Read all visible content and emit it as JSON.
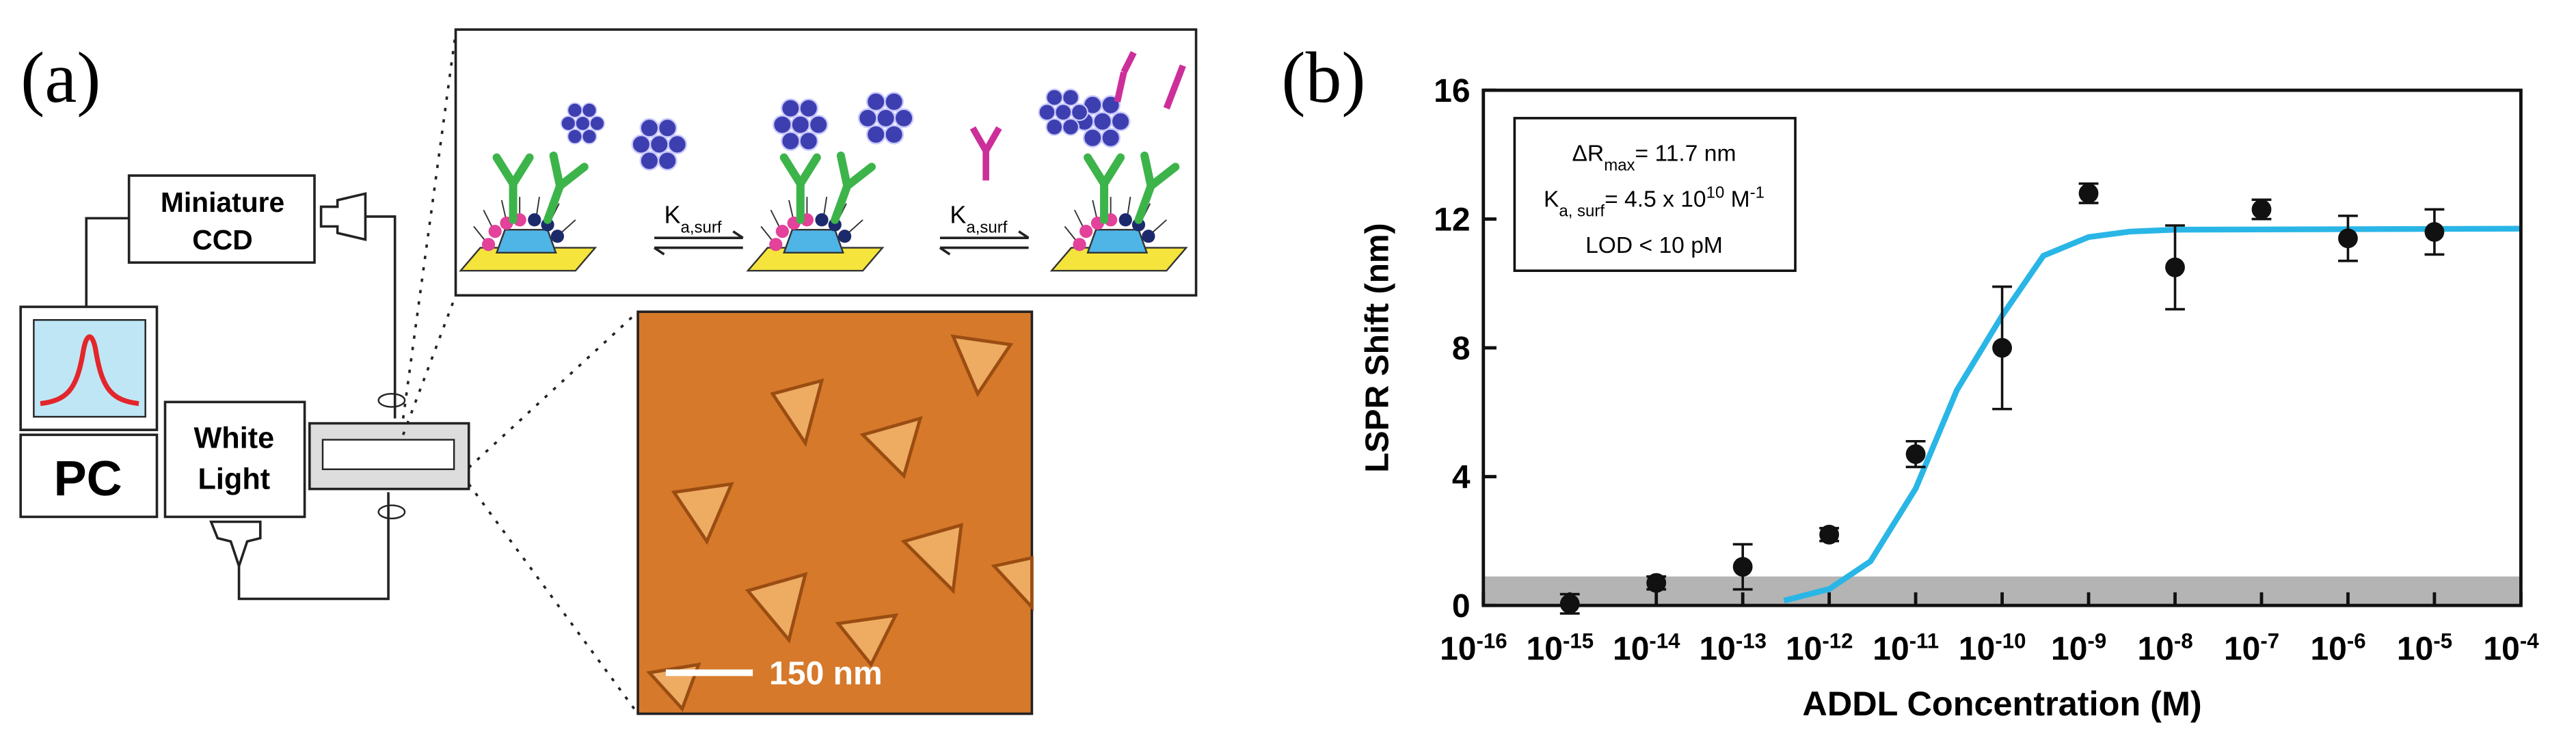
{
  "panel_a": {
    "label": "(a)",
    "ccd": [
      "Miniature",
      "CCD"
    ],
    "pc": "PC",
    "light": [
      "White",
      "Light"
    ],
    "k_labels": [
      {
        "main": "K",
        "sub": "a,surf"
      },
      {
        "main": "K",
        "sub": "a,surf"
      }
    ],
    "scale_bar": "150 nm"
  },
  "chart_data": {
    "type": "scatter",
    "panel_label": "(b)",
    "xlabel": "ADDL Concentration (M)",
    "ylabel": "LSPR Shift (nm)",
    "xscale": "log",
    "xlim": [
      1e-16,
      0.0001
    ],
    "xticks": [
      {
        "value": 1e-16,
        "label": "10-16"
      },
      {
        "value": 1e-15,
        "label": "10-15"
      },
      {
        "value": 1e-14,
        "label": "10-14"
      },
      {
        "value": 1e-13,
        "label": "10-13"
      },
      {
        "value": 1e-12,
        "label": "10-12"
      },
      {
        "value": 1e-11,
        "label": "10-11"
      },
      {
        "value": 1e-10,
        "label": "10-10"
      },
      {
        "value": 1e-09,
        "label": "10-9"
      },
      {
        "value": 1e-08,
        "label": "10-8"
      },
      {
        "value": 1e-07,
        "label": "10-7"
      },
      {
        "value": 1e-06,
        "label": "10-6"
      },
      {
        "value": 1e-05,
        "label": "10-5"
      },
      {
        "value": 0.0001,
        "label": "10-4"
      }
    ],
    "ylim": [
      0,
      16
    ],
    "yticks": [
      0,
      4,
      8,
      12,
      16
    ],
    "points": {
      "color": "#111111",
      "x": [
        1e-15,
        1e-14,
        1e-13,
        1e-12,
        1e-11,
        1e-10,
        1e-09,
        1e-08,
        1e-07,
        1e-06,
        1e-05
      ],
      "values": [
        0.05,
        0.7,
        1.2,
        2.2,
        4.7,
        8.0,
        12.8,
        10.5,
        12.3,
        11.4,
        11.6
      ],
      "errors": [
        0.3,
        0.2,
        0.7,
        0.2,
        0.4,
        1.9,
        0.3,
        1.3,
        0.3,
        0.7,
        0.7
      ]
    },
    "fit": {
      "color": "#29b6e6",
      "x": [
        3e-13,
        1e-12,
        3e-12,
        1e-11,
        3e-11,
        1e-10,
        3e-10,
        1e-09,
        3e-09,
        1e-08,
        0.0001
      ],
      "values": [
        0.15,
        0.51,
        1.37,
        3.63,
        6.69,
        9.0,
        10.86,
        11.44,
        11.61,
        11.67,
        11.7
      ]
    },
    "band": {
      "ylim": [
        0,
        0.9
      ],
      "color": "#b4b4b4"
    },
    "annotation": [
      [
        {
          "text": "ΔR"
        },
        {
          "text": "max",
          "sub": true
        },
        {
          "text": "= 11.7 nm"
        }
      ],
      [
        {
          "text": "K"
        },
        {
          "text": "a, surf",
          "sub": true
        },
        {
          "text": "= 4.5 x 10"
        },
        {
          "text": "10",
          "sup": true
        },
        {
          "text": " M"
        },
        {
          "text": "-1",
          "sup": true
        }
      ],
      [
        {
          "text": "LOD  < 10 pM"
        }
      ]
    ]
  }
}
